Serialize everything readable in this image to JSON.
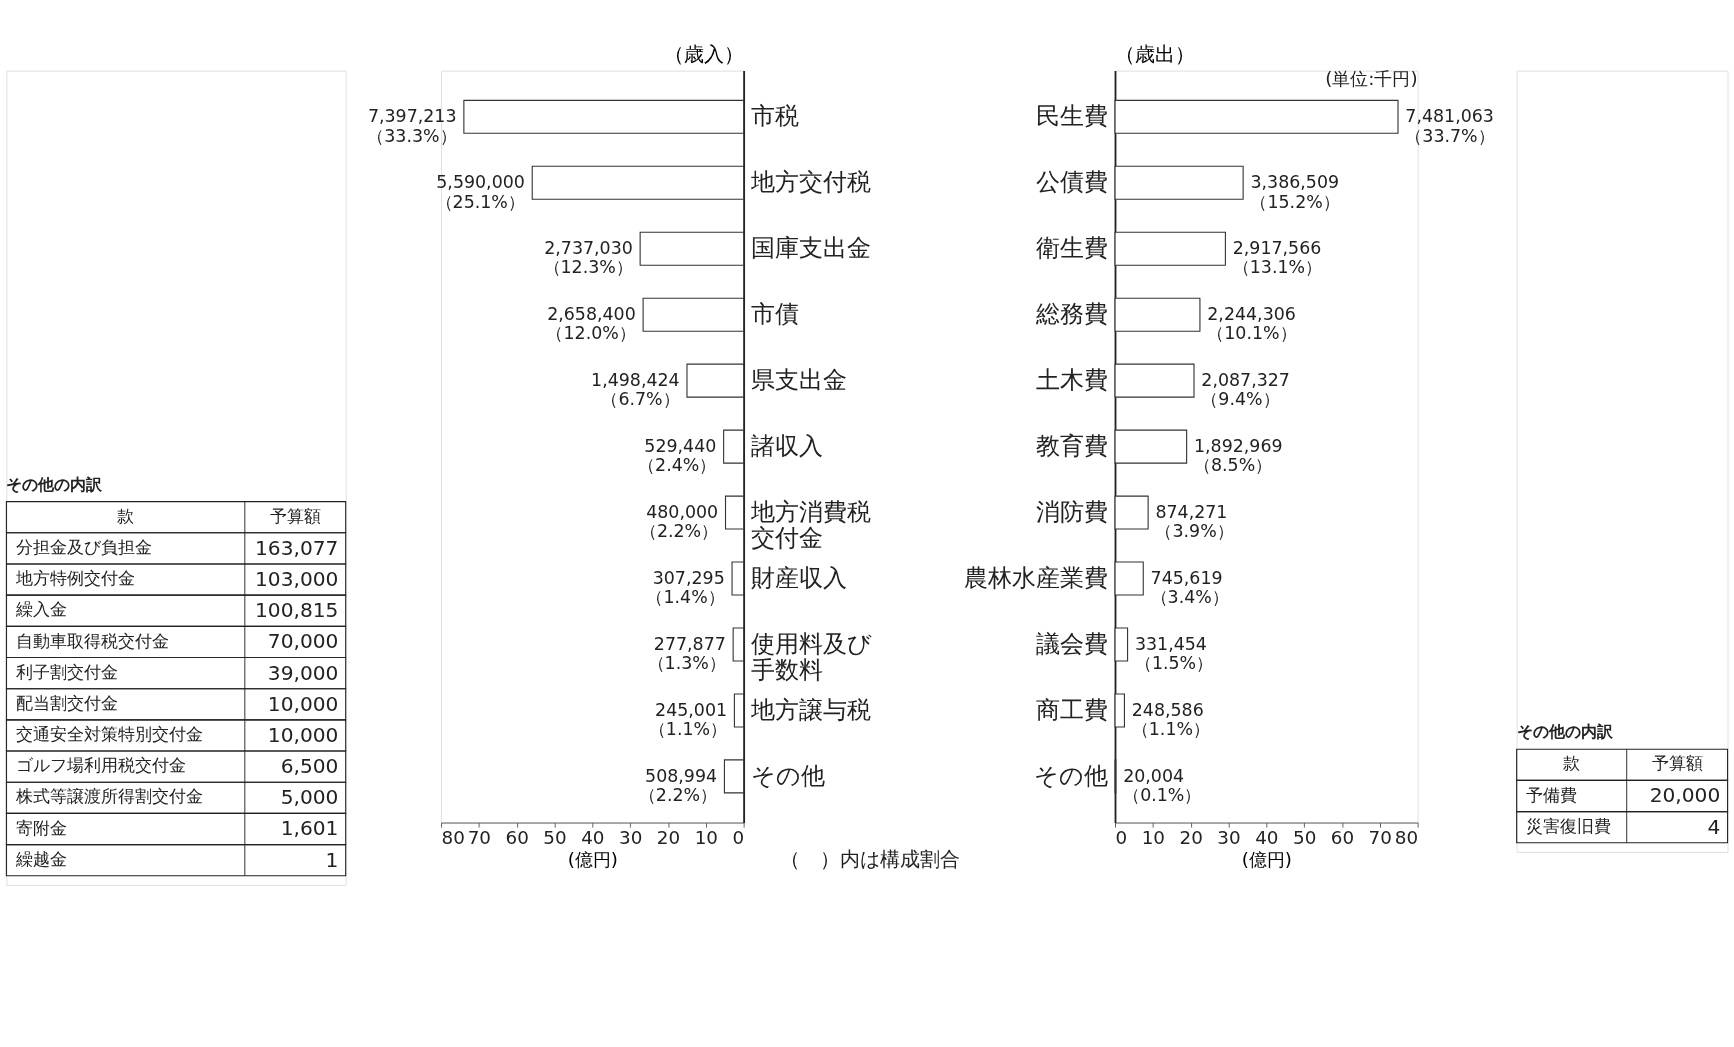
{
  "chart_data": [
    {
      "type": "bar",
      "orientation": "horizontal",
      "title": "（歳入）",
      "xlabel": "(億円)",
      "categories": [
        "市税",
        "地方交付税",
        "国庫支出金",
        "市債",
        "県支出金",
        "諸収入",
        "地方消費税交付金",
        "財産収入",
        "使用料及び手数料",
        "地方譲与税",
        "その他"
      ],
      "series": [
        {
          "color": "#ffffff",
          "values": [
            73.97213,
            55.9,
            27.3703,
            26.584,
            14.98424,
            5.2944,
            4.8,
            3.07295,
            2.77877,
            2.45001,
            5.08994
          ]
        }
      ],
      "xlim": [
        80,
        0
      ],
      "xticks": [
        80,
        70,
        60,
        50,
        40,
        30,
        20,
        10,
        0
      ],
      "annotations": [
        {
          "text": "7,397,213\n（33.3%）",
          "x": 73.97213,
          "y": "市税"
        },
        {
          "text": "5,590,000\n（25.1%）",
          "x": 55.9,
          "y": "地方交付税"
        },
        {
          "text": "2,737,030\n（12.3%）",
          "x": 27.3703,
          "y": "国庫支出金"
        },
        {
          "text": "2,658,400\n（12.0%）",
          "x": 26.584,
          "y": "市債"
        },
        {
          "text": "1,498,424\n（6.7%）",
          "x": 14.98424,
          "y": "県支出金"
        },
        {
          "text": "529,440\n（2.4%）",
          "x": 5.2944,
          "y": "諸収入"
        },
        {
          "text": "480,000\n（2.2%）",
          "x": 4.8,
          "y": "地方消費税交付金"
        },
        {
          "text": "307,295\n（1.4%）",
          "x": 3.07295,
          "y": "財産収入"
        },
        {
          "text": "277,877\n（1.3%）",
          "x": 2.77877,
          "y": "使用料及び手数料"
        },
        {
          "text": "245,001\n（1.1%）",
          "x": 2.45001,
          "y": "地方譲与税"
        },
        {
          "text": "508,994\n（2.2%）",
          "x": 5.08994,
          "y": "その他"
        },
        "（　）内は構成割合"
      ]
    },
    {
      "type": "bar",
      "orientation": "horizontal",
      "title": "（歳出）",
      "xlabel": "(億円)",
      "categories": [
        "民生費",
        "公債費",
        "衛生費",
        "総務費",
        "土木費",
        "教育費",
        "消防費",
        "農林水産業費",
        "議会費",
        "商工費",
        "その他"
      ],
      "series": [
        {
          "color": "#ffffff",
          "values": [
            74.81063,
            33.86509,
            29.17566,
            22.44306,
            20.87327,
            18.92969,
            8.74271,
            7.45619,
            3.31454,
            2.48586,
            0.20004
          ]
        }
      ],
      "xlim": [
        0,
        80
      ],
      "xticks": [
        0,
        10,
        20,
        30,
        40,
        50,
        60,
        70,
        80
      ],
      "annotations": [
        {
          "text": "7,481,063\n（33.7%）",
          "x": 74.81063,
          "y": "民生費"
        },
        {
          "text": "3,386,509\n（15.2%）",
          "x": 33.86509,
          "y": "公債費"
        },
        {
          "text": "2,917,566\n（13.1%）",
          "x": 29.17566,
          "y": "衛生費"
        },
        {
          "text": "2,244,306\n（10.1%）",
          "x": 22.44306,
          "y": "総務費"
        },
        {
          "text": "2,087,327\n（9.4%）",
          "x": 20.87327,
          "y": "土木費"
        },
        {
          "text": "1,892,969\n（8.5%）",
          "x": 18.92969,
          "y": "教育費"
        },
        {
          "text": "874,271\n（3.9%）",
          "x": 8.74271,
          "y": "消防費"
        },
        {
          "text": "745,619\n（3.4%）",
          "x": 7.45619,
          "y": "農林水産業費"
        },
        {
          "text": "331,454\n（1.5%）",
          "x": 3.31454,
          "y": "議会費"
        },
        {
          "text": "248,586\n（1.1%）",
          "x": 2.48586,
          "y": "商工費"
        },
        {
          "text": "20,004\n（0.1%）",
          "x": 0.20004,
          "y": "その他"
        },
        "(単位:千円)"
      ]
    },
    {
      "type": "other",
      "title": "その他の内訳",
      "xlabel": "款",
      "ylabel": "予算額",
      "categories": [
        "分担金及び負担金",
        "地方特例交付金",
        "繰入金",
        "自動車取得税交付金",
        "利子割交付金",
        "配当割交付金",
        "交通安全対策特別交付金",
        "ゴルフ場利用税交付金",
        "株式等譲渡所得割交付金",
        "寄附金",
        "繰越金"
      ],
      "value_labels": [
        "163,077",
        "103,000",
        "100,815",
        "70,000",
        "39,000",
        "10,000",
        "10,000",
        "6,500",
        "5,000",
        "1,601",
        "1"
      ]
    },
    {
      "type": "other",
      "title": "その他の内訳",
      "xlabel": "款",
      "ylabel": "予算額",
      "categories": [
        "予備費",
        "災害復旧費"
      ],
      "value_labels": [
        "20,000",
        "4"
      ]
    }
  ]
}
